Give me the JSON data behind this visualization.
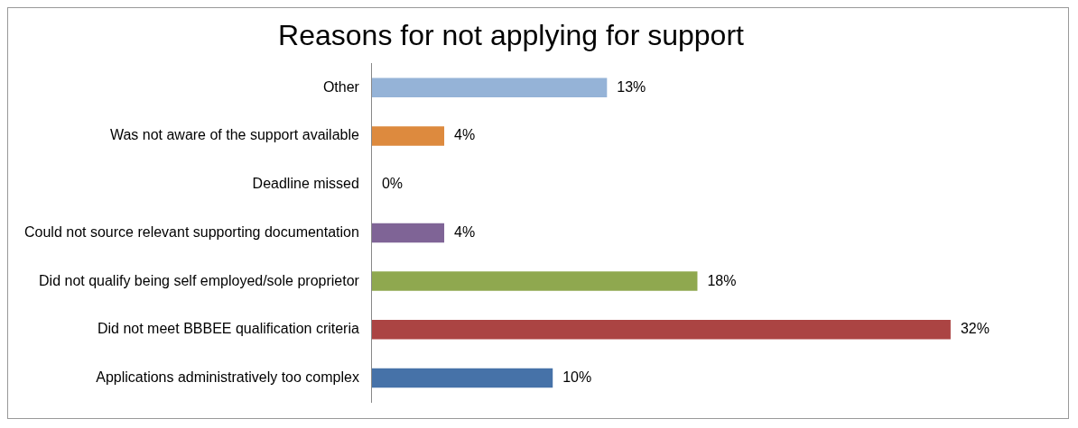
{
  "chart_data": {
    "type": "bar",
    "orientation": "horizontal",
    "title": "Reasons for not applying for support",
    "categories": [
      "Other",
      "Was not aware of the support available",
      "Deadline missed",
      "Could not source relevant supporting documentation",
      "Did not qualify being self employed/sole proprietor",
      "Did not meet BBBEE qualification criteria",
      "Applications administratively too complex"
    ],
    "values": [
      13,
      4,
      0,
      4,
      18,
      32,
      10
    ],
    "colors": [
      "#95b3d7",
      "#dd8a3e",
      "#8064a2",
      "#7f6496",
      "#8fa84f",
      "#ab4443",
      "#4672a8"
    ],
    "value_labels": [
      "13%",
      "4%",
      "0%",
      "4%",
      "18%",
      "32%",
      "10%"
    ],
    "tick_labels": "y",
    "grid": false,
    "legend": false
  }
}
